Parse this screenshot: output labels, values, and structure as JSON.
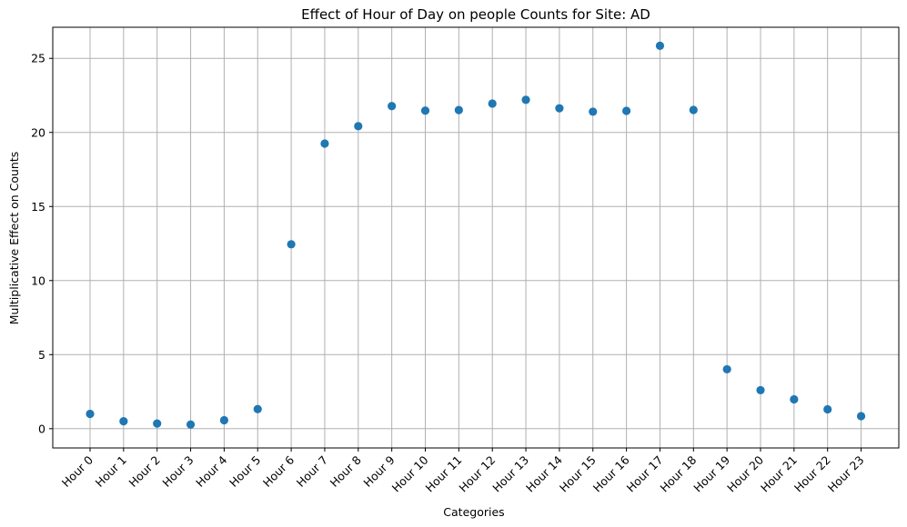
{
  "chart_data": {
    "type": "scatter",
    "title": "Effect of Hour of Day on people Counts for Site: AD",
    "xlabel": "Categories",
    "ylabel": "Multiplicative Effect on Counts",
    "categories": [
      "Hour 0",
      "Hour 1",
      "Hour 2",
      "Hour 3",
      "Hour 4",
      "Hour 5",
      "Hour 6",
      "Hour 7",
      "Hour 8",
      "Hour 9",
      "Hour 10",
      "Hour 11",
      "Hour 12",
      "Hour 13",
      "Hour 14",
      "Hour 15",
      "Hour 16",
      "Hour 17",
      "Hour 18",
      "Hour 19",
      "Hour 20",
      "Hour 21",
      "Hour 22",
      "Hour 23"
    ],
    "values": [
      1.0,
      0.5,
      0.35,
      0.28,
      0.57,
      1.32,
      12.45,
      19.25,
      20.42,
      21.78,
      21.47,
      21.51,
      21.95,
      22.2,
      21.63,
      21.4,
      21.46,
      25.85,
      21.52,
      4.01,
      2.6,
      1.98,
      1.31,
      0.85
    ],
    "yticks": [
      0,
      5,
      10,
      15,
      20,
      25
    ],
    "ylim": [
      -1.3,
      27.1
    ],
    "grid": true,
    "marker_color": "#1f77b4"
  }
}
